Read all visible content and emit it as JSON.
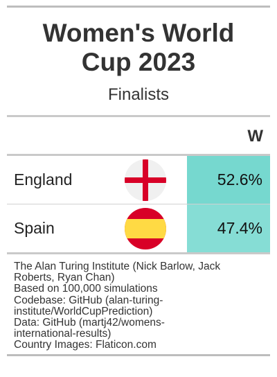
{
  "title_line1": "Women's World",
  "title_line2": "Cup 2023",
  "subtitle": "Finalists",
  "column_header": "W",
  "rows": [
    {
      "team": "England",
      "flag_icon": "england-flag-icon",
      "value": "52.6%",
      "probability": 0.526,
      "cell_color": "#76d8cf"
    },
    {
      "team": "Spain",
      "flag_icon": "spain-flag-icon",
      "value": "47.4%",
      "probability": 0.474,
      "cell_color": "#86ddd5"
    }
  ],
  "footer_lines": [
    "The Alan Turing Institute (Nick Barlow, Jack",
    "Roberts, Ryan Chan)",
    "Based on 100,000 simulations",
    "Codebase: GitHub (alan-turing-",
    "institute/WorldCupPrediction)",
    "Data: GitHub (martj42/womens-",
    "international-results)",
    "Country Images: Flaticon.com"
  ]
}
